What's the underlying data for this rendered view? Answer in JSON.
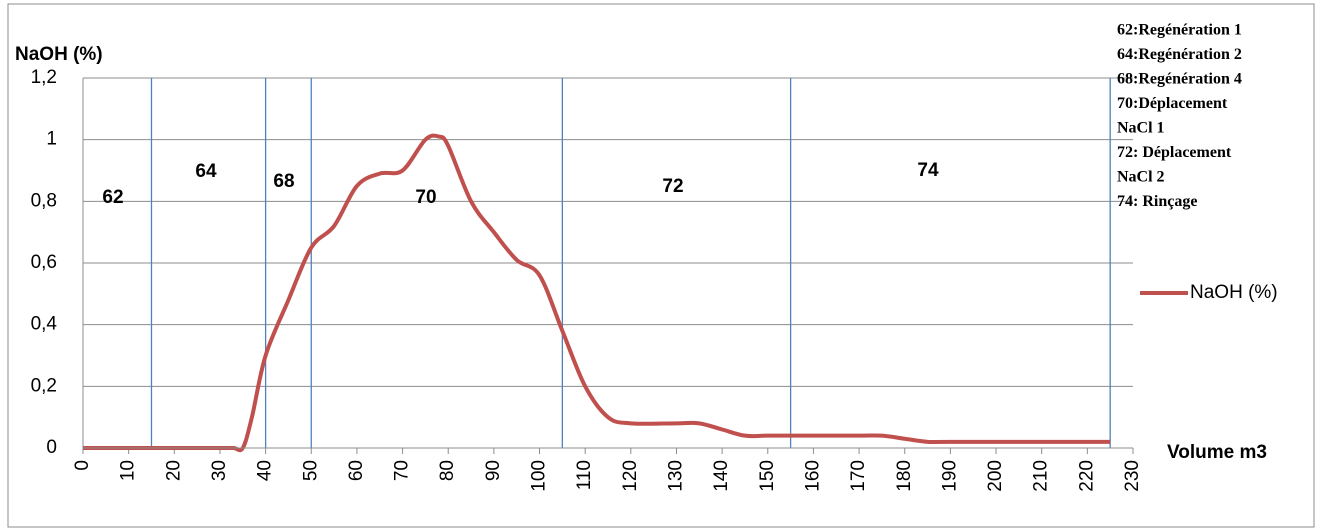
{
  "chart_data": {
    "type": "line",
    "y_label": "NaOH (%)",
    "x_label": "Volume m3",
    "x": [
      0,
      5,
      10,
      15,
      20,
      25,
      30,
      33,
      35,
      37,
      40,
      45,
      50,
      55,
      60,
      65,
      70,
      75,
      78,
      80,
      85,
      90,
      95,
      100,
      105,
      110,
      115,
      120,
      130,
      135,
      140,
      145,
      150,
      160,
      170,
      175,
      180,
      185,
      190,
      225
    ],
    "series": [
      {
        "name": "NaOH (%)",
        "color": "#c0504d",
        "values": [
          0,
          0,
          0,
          0,
          0,
          0,
          0,
          0,
          0,
          0.1,
          0.3,
          0.48,
          0.65,
          0.72,
          0.85,
          0.89,
          0.9,
          1.0,
          1.01,
          0.98,
          0.8,
          0.7,
          0.61,
          0.56,
          0.38,
          0.2,
          0.1,
          0.08,
          0.08,
          0.08,
          0.06,
          0.04,
          0.04,
          0.04,
          0.04,
          0.04,
          0.03,
          0.02,
          0.02,
          0.02
        ]
      }
    ],
    "xlim": [
      0,
      230
    ],
    "xticks": [
      0,
      10,
      20,
      30,
      40,
      50,
      60,
      70,
      80,
      90,
      100,
      110,
      120,
      130,
      140,
      150,
      160,
      170,
      180,
      190,
      200,
      210,
      220,
      230
    ],
    "ylim": [
      0,
      1.2
    ],
    "yticks": [
      0,
      {
        "value": 0.2,
        "label": "0,2"
      },
      {
        "value": 0.4,
        "label": "0,4"
      },
      {
        "value": 0.6,
        "label": "0,6"
      },
      {
        "value": 0.8,
        "label": "0,8"
      },
      1,
      {
        "value": 1.2,
        "label": "1,2"
      }
    ],
    "grid": true,
    "legend": "right",
    "boundaries": {
      "color": "#4f81bd",
      "x": [
        15,
        40,
        50,
        105,
        155,
        225
      ]
    },
    "regions": [
      "62",
      "64",
      "68",
      "70",
      "72",
      "74"
    ],
    "notes": [
      "62:Regénération 1",
      "64:Regénération 2",
      "68:Regénération 4",
      "70:Déplacement",
      "NaCl 1",
      "72: Déplacement",
      "NaCl 2",
      "74: Rinçage"
    ]
  }
}
